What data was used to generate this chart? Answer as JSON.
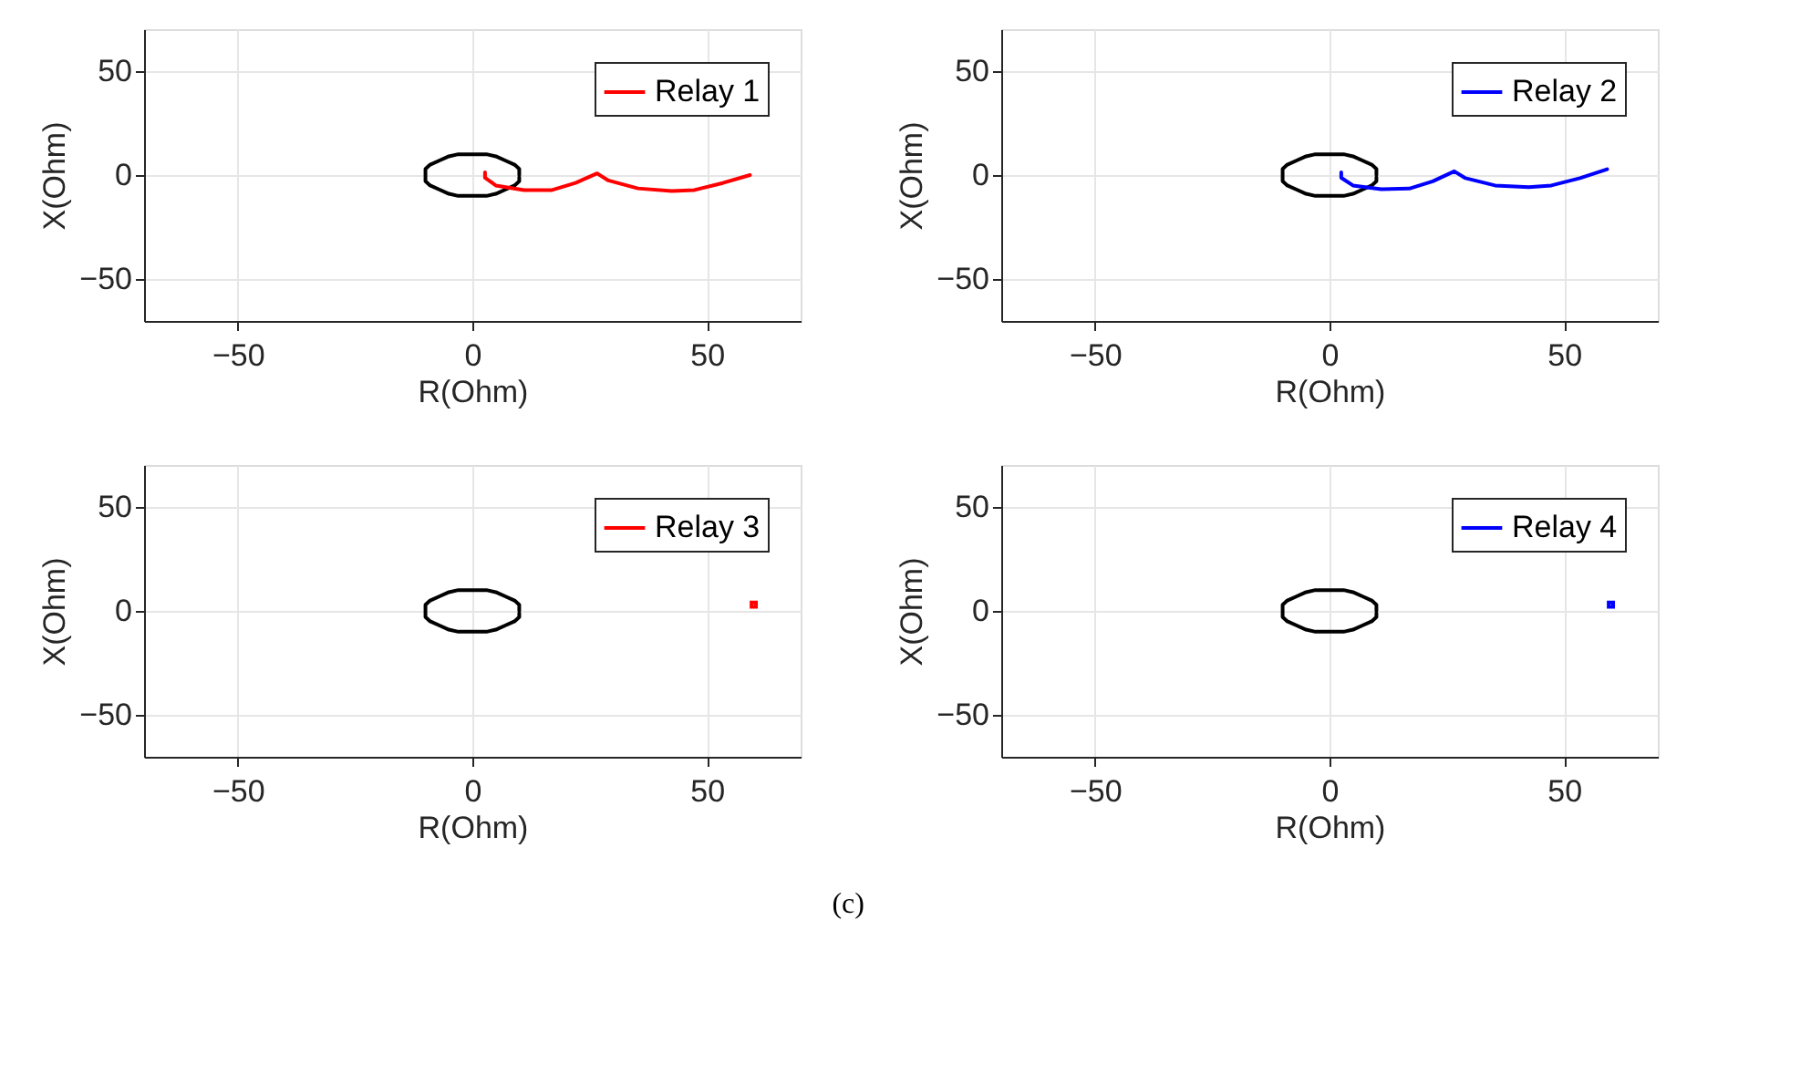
{
  "chart_data": [
    {
      "type": "line",
      "xlabel": "R(Ohm)",
      "ylabel": "X(Ohm)",
      "xlim": [
        -70,
        70
      ],
      "ylim": [
        -70,
        70
      ],
      "xticks": [
        -50,
        0,
        50
      ],
      "yticks": [
        -50,
        0,
        50
      ],
      "grid": true,
      "legend": "top right",
      "series": [
        {
          "color": "#000000",
          "x": [
            10,
            10,
            9,
            7,
            5,
            3,
            0,
            -3,
            -5,
            -7,
            -9,
            -10,
            -10,
            -10,
            -9,
            -7,
            -5,
            -3,
            0,
            3,
            5,
            7,
            9,
            10,
            10
          ],
          "values": [
            0,
            3,
            5,
            7,
            9,
            10,
            10,
            10,
            9,
            7,
            5,
            3,
            0,
            -3,
            -5,
            -7,
            -9,
            -10,
            -10,
            -10,
            -9,
            -7,
            -5,
            -3,
            -1
          ]
        },
        {
          "name": "Relay 1",
          "color": "#ff0000",
          "x": [
            2.7,
            2.7,
            5,
            11,
            17,
            22,
            26.6,
            29,
            35.3,
            42.5,
            47.3,
            53.4,
            59.2
          ],
          "values": [
            1.3,
            -1.3,
            -5,
            -7.2,
            -7.2,
            -3.8,
            0.8,
            -2.6,
            -6.4,
            -7.7,
            -7.2,
            -3.8,
            0
          ]
        }
      ]
    },
    {
      "type": "line",
      "xlabel": "R(Ohm)",
      "ylabel": "X(Ohm)",
      "xlim": [
        -70,
        70
      ],
      "ylim": [
        -70,
        70
      ],
      "xticks": [
        -50,
        0,
        50
      ],
      "yticks": [
        -50,
        0,
        50
      ],
      "grid": true,
      "legend": "top right",
      "series": [
        {
          "color": "#000000",
          "x": [
            10,
            10,
            9,
            7,
            5,
            3,
            0,
            -3,
            -5,
            -7,
            -9,
            -10,
            -10,
            -10,
            -9,
            -7,
            -5,
            -3,
            0,
            3,
            5,
            7,
            9,
            10,
            10
          ],
          "values": [
            0,
            3,
            5,
            7,
            9,
            10,
            10,
            10,
            9,
            7,
            5,
            3,
            0,
            -3,
            -5,
            -7,
            -9,
            -10,
            -10,
            -10,
            -9,
            -7,
            -5,
            -3,
            -1
          ]
        },
        {
          "name": "Relay 2",
          "color": "#0000ff",
          "x": [
            2.5,
            2.5,
            5,
            11,
            17,
            22,
            26.6,
            29,
            35.3,
            42.5,
            47.3,
            53.4,
            59.2
          ],
          "values": [
            1.3,
            -1.3,
            -5,
            -6.8,
            -6.5,
            -3,
            1.8,
            -1.5,
            -5,
            -5.8,
            -5,
            -1.5,
            2.8
          ]
        }
      ]
    },
    {
      "type": "line",
      "xlabel": "R(Ohm)",
      "ylabel": "X(Ohm)",
      "xlim": [
        -70,
        70
      ],
      "ylim": [
        -70,
        70
      ],
      "xticks": [
        -50,
        0,
        50
      ],
      "yticks": [
        -50,
        0,
        50
      ],
      "grid": true,
      "legend": "top right",
      "series": [
        {
          "color": "#000000",
          "x": [
            10,
            10,
            9,
            7,
            5,
            3,
            0,
            -3,
            -5,
            -7,
            -9,
            -10,
            -10,
            -10,
            -9,
            -7,
            -5,
            -3,
            0,
            3,
            5,
            7,
            9,
            10,
            10
          ],
          "values": [
            0,
            3,
            5,
            7,
            9,
            10,
            10,
            10,
            9,
            7,
            5,
            3,
            0,
            -3,
            -5,
            -7,
            -9,
            -10,
            -10,
            -10,
            -9,
            -7,
            -5,
            -3,
            -1
          ]
        },
        {
          "name": "Relay 3",
          "color": "#ff0000",
          "type": "scatter",
          "marker": "square",
          "x": [
            60
          ],
          "values": [
            3
          ]
        }
      ]
    },
    {
      "type": "line",
      "xlabel": "R(Ohm)",
      "ylabel": "X(Ohm)",
      "xlim": [
        -70,
        70
      ],
      "ylim": [
        -70,
        70
      ],
      "xticks": [
        -50,
        0,
        50
      ],
      "yticks": [
        -50,
        0,
        50
      ],
      "grid": true,
      "legend": "top right",
      "annotations": [
        "(c)"
      ],
      "series": [
        {
          "color": "#000000",
          "x": [
            10,
            10,
            9,
            7,
            5,
            3,
            0,
            -3,
            -5,
            -7,
            -9,
            -10,
            -10,
            -10,
            -9,
            -7,
            -5,
            -3,
            0,
            3,
            5,
            7,
            9,
            10,
            10
          ],
          "values": [
            0,
            3,
            5,
            7,
            9,
            10,
            10,
            10,
            9,
            7,
            5,
            3,
            0,
            -3,
            -5,
            -7,
            -9,
            -10,
            -10,
            -10,
            -9,
            -7,
            -5,
            -3,
            -1
          ]
        },
        {
          "name": "Relay 4",
          "color": "#0000ff",
          "type": "scatter",
          "marker": "square",
          "x": [
            60
          ],
          "values": [
            3
          ]
        }
      ]
    }
  ]
}
